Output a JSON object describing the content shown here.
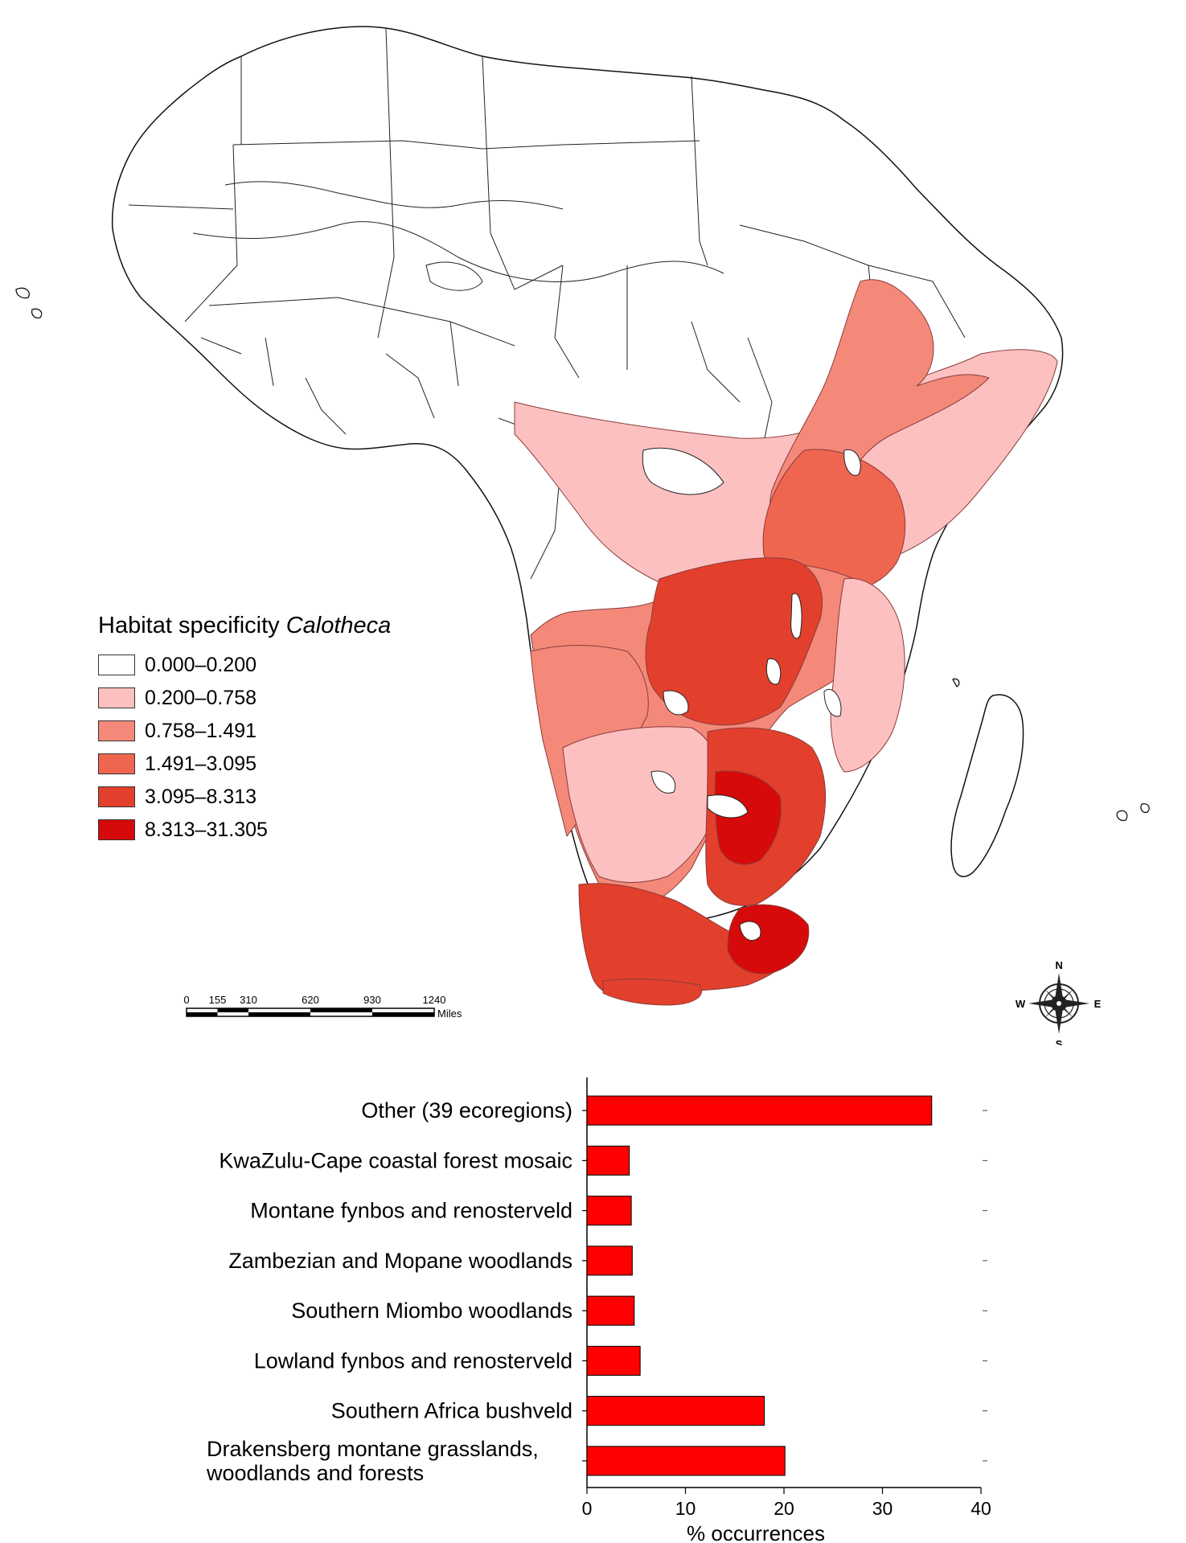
{
  "legend": {
    "title_prefix": "Habitat specificity ",
    "title_taxon": "Calotheca",
    "classes": [
      {
        "label": "0.000–0.200",
        "color": "#ffffff"
      },
      {
        "label": "0.200–0.758",
        "color": "#fcc0c0"
      },
      {
        "label": "0.758–1.491",
        "color": "#f4897a"
      },
      {
        "label": "1.491–3.095",
        "color": "#ef6650"
      },
      {
        "label": "3.095–8.313",
        "color": "#e2402c"
      },
      {
        "label": "8.313–31.305",
        "color": "#d60a0a"
      }
    ]
  },
  "scale_bar": {
    "ticks": [
      "0",
      "155",
      "310",
      "620",
      "930",
      "1240"
    ],
    "unit": "Miles"
  },
  "compass": {
    "n": "N",
    "s": "S",
    "e": "E",
    "w": "W"
  },
  "chart_data": {
    "type": "bar",
    "orientation": "horizontal",
    "categories": [
      "Other (39 ecoregions)",
      "KwaZulu-Cape coastal forest mosaic",
      "Montane fynbos and renosterveld",
      "Zambezian and Mopane woodlands",
      "Southern Miombo woodlands",
      "Lowland fynbos and renosterveld",
      "Southern Africa bushveld",
      "Drakensberg montane grasslands, woodlands and forests"
    ],
    "category_lines": [
      [
        "Other (39 ecoregions)"
      ],
      [
        "KwaZulu-Cape coastal forest mosaic"
      ],
      [
        "Montane fynbos and renosterveld"
      ],
      [
        "Zambezian and Mopane woodlands"
      ],
      [
        "Southern Miombo woodlands"
      ],
      [
        "Lowland fynbos and renosterveld"
      ],
      [
        "Southern Africa bushveld"
      ],
      [
        "Drakensberg montane grasslands,",
        "woodlands and forests"
      ]
    ],
    "values": [
      35.0,
      4.3,
      4.5,
      4.6,
      4.8,
      5.4,
      18.0,
      20.1
    ],
    "xlabel": "% occurrences",
    "xlim": [
      0,
      40
    ],
    "xticks": [
      0,
      10,
      20,
      30,
      40
    ],
    "bar_color": "#ff0000",
    "grid": false
  }
}
